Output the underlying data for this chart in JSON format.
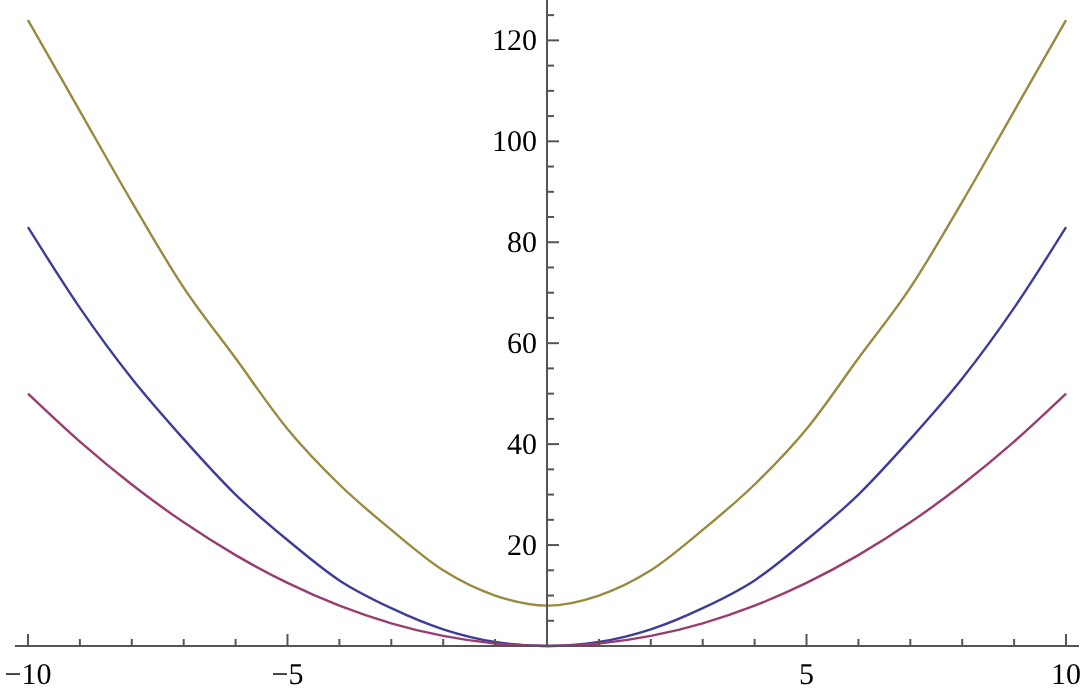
{
  "chart_data": {
    "type": "line",
    "x": [
      -10,
      -9,
      -8,
      -7,
      -6,
      -5,
      -4,
      -3,
      -2,
      -1,
      0,
      1,
      2,
      3,
      4,
      5,
      6,
      7,
      8,
      9,
      10
    ],
    "xlim": [
      -10.25,
      10.25
    ],
    "ylim": [
      0,
      128
    ],
    "xticks": [
      {
        "value": -10,
        "label": "−10"
      },
      {
        "value": -9,
        "label": null
      },
      {
        "value": -8,
        "label": null
      },
      {
        "value": -7,
        "label": null
      },
      {
        "value": -6,
        "label": null
      },
      {
        "value": -5,
        "label": "−5"
      },
      {
        "value": -4,
        "label": null
      },
      {
        "value": -3,
        "label": null
      },
      {
        "value": -2,
        "label": null
      },
      {
        "value": -1,
        "label": null
      },
      {
        "value": 1,
        "label": null
      },
      {
        "value": 2,
        "label": null
      },
      {
        "value": 3,
        "label": null
      },
      {
        "value": 4,
        "label": null
      },
      5,
      {
        "value": 6,
        "label": null
      },
      {
        "value": 7,
        "label": null
      },
      {
        "value": 8,
        "label": null
      },
      {
        "value": 9,
        "label": null
      },
      10
    ],
    "yticks": [
      {
        "value": 5,
        "label": null
      },
      {
        "value": 10,
        "label": null
      },
      {
        "value": 15,
        "label": null
      },
      20,
      {
        "value": 25,
        "label": null
      },
      {
        "value": 30,
        "label": null
      },
      {
        "value": 35,
        "label": null
      },
      40,
      {
        "value": 45,
        "label": null
      },
      {
        "value": 50,
        "label": null
      },
      {
        "value": 55,
        "label": null
      },
      60,
      {
        "value": 65,
        "label": null
      },
      {
        "value": 70,
        "label": null
      },
      {
        "value": 75,
        "label": null
      },
      80,
      {
        "value": 85,
        "label": null
      },
      {
        "value": 90,
        "label": null
      },
      {
        "value": 95,
        "label": null
      },
      100,
      {
        "value": 105,
        "label": null
      },
      {
        "value": 110,
        "label": null
      },
      {
        "value": 115,
        "label": null
      },
      120,
      {
        "value": 125,
        "label": null
      }
    ],
    "series": [
      {
        "color": "#998a3d",
        "values": [
          124,
          106,
          88,
          71,
          57,
          43,
          32,
          23,
          15,
          10,
          8,
          10,
          15,
          23,
          32,
          43,
          57,
          71,
          88,
          106,
          124
        ]
      },
      {
        "color": "#3d3d99",
        "values": [
          83,
          67,
          53,
          41,
          30,
          21,
          13,
          7.5,
          3.3,
          0.8,
          0,
          0.8,
          3.3,
          7.5,
          13,
          21,
          30,
          41,
          53,
          67,
          83
        ]
      },
      {
        "color": "#993d71",
        "values": [
          50,
          40.5,
          32,
          24.5,
          18,
          12.5,
          8,
          4.5,
          2,
          0.5,
          0,
          0.5,
          2,
          4.5,
          8,
          12.5,
          18,
          24.5,
          32,
          40.5,
          50
        ]
      }
    ]
  }
}
